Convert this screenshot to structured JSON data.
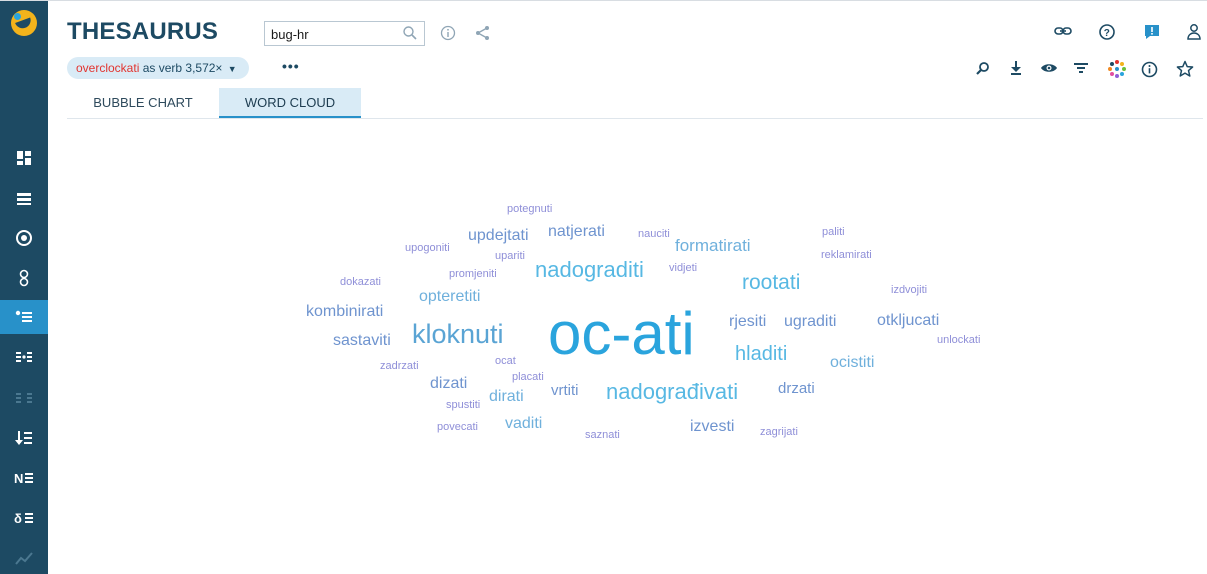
{
  "app": {
    "title": "THESAURUS"
  },
  "search": {
    "value": "bug-hr",
    "placeholder": ""
  },
  "lemma_chip": {
    "lemma": "overclockati",
    "pos": "as verb",
    "frequency": "3,572×"
  },
  "more_label": "•••",
  "tabs": [
    {
      "label": "BUBBLE CHART",
      "active": false
    },
    {
      "label": "WORD CLOUD",
      "active": true
    }
  ],
  "colors": {
    "sidebar": "#1d4a63",
    "accent": "#2891c9",
    "cloud_blue": "#2aa4dd",
    "cloud_lavender": "#8f8fd8"
  },
  "word_cloud": [
    {
      "text": "oc-ati"
    },
    {
      "text": "kloknuti"
    },
    {
      "text": "nadograditi"
    },
    {
      "text": "nadograđivati"
    },
    {
      "text": "rootati"
    },
    {
      "text": "hladiti"
    },
    {
      "text": "updejtati"
    },
    {
      "text": "natjerati"
    },
    {
      "text": "formatirati"
    },
    {
      "text": "kombinirati"
    },
    {
      "text": "sastaviti"
    },
    {
      "text": "opteretiti"
    },
    {
      "text": "rjesiti"
    },
    {
      "text": "ugraditi"
    },
    {
      "text": "otkljucati"
    },
    {
      "text": "ocistiti"
    },
    {
      "text": "dizati"
    },
    {
      "text": "dirati"
    },
    {
      "text": "vrtiti"
    },
    {
      "text": "drzati"
    },
    {
      "text": "vaditi"
    },
    {
      "text": "izvesti"
    },
    {
      "text": "potegnuti"
    },
    {
      "text": "upogoniti"
    },
    {
      "text": "upariti"
    },
    {
      "text": "nauciti"
    },
    {
      "text": "paliti"
    },
    {
      "text": "reklamirati"
    },
    {
      "text": "vidjeti"
    },
    {
      "text": "promjeniti"
    },
    {
      "text": "dokazati"
    },
    {
      "text": "izdvojiti"
    },
    {
      "text": "unlockati"
    },
    {
      "text": "zadrzati"
    },
    {
      "text": "ocat"
    },
    {
      "text": "placati"
    },
    {
      "text": "spustiti"
    },
    {
      "text": "povecati"
    },
    {
      "text": "saznati"
    },
    {
      "text": "zagrijati"
    }
  ]
}
